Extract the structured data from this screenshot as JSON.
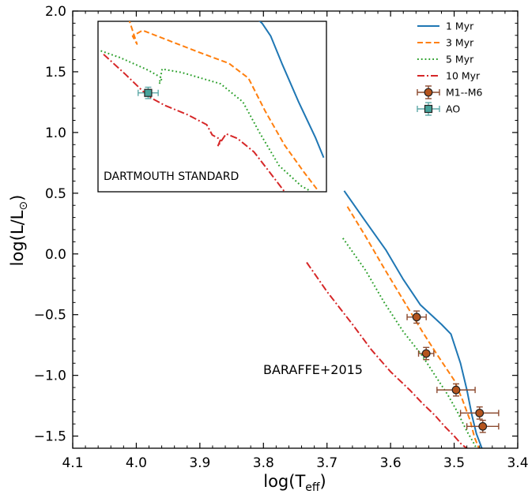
{
  "chart_data": {
    "type": "line",
    "xlabel": "log(T",
    "xlabel_sub": "eff",
    "xlabel_end": ")",
    "ylabel": "log(L/L",
    "ylabel_sub": "⊙",
    "ylabel_end": ")",
    "xlim": [
      4.1,
      3.4
    ],
    "ylim": [
      -1.6,
      2.0
    ],
    "x_ticks": [
      4.1,
      4.0,
      3.9,
      3.8,
      3.7,
      3.6,
      3.5,
      3.4
    ],
    "x_tick_labels": [
      "4.1",
      "4.0",
      "3.9",
      "3.8",
      "3.7",
      "3.6",
      "3.5",
      "3.4"
    ],
    "y_ticks": [
      -1.5,
      -1.0,
      -0.5,
      0.0,
      0.5,
      1.0,
      1.5,
      2.0
    ],
    "y_tick_labels": [
      "−1.5",
      "−1.0",
      "−0.5",
      "0.0",
      "0.5",
      "1.0",
      "1.5",
      "2.0"
    ],
    "annotations": [
      "BARAFFE+2015"
    ],
    "legend_position": "top-right",
    "series": [
      {
        "name": "1 Myr",
        "color": "#1f77b4",
        "dash": "solid",
        "x": [
          3.673,
          3.641,
          3.607,
          3.58,
          3.553,
          3.52,
          3.505,
          3.49,
          3.48,
          3.472,
          3.465,
          3.455
        ],
        "y": [
          0.52,
          0.28,
          0.03,
          -0.21,
          -0.42,
          -0.58,
          -0.66,
          -0.9,
          -1.12,
          -1.33,
          -1.48,
          -1.62
        ]
      },
      {
        "name": "3 Myr",
        "color": "#ff7f0e",
        "dash": "dashed",
        "x": [
          3.668,
          3.64,
          3.61,
          3.58,
          3.55,
          3.528,
          3.5,
          3.487,
          3.475,
          3.468,
          3.461
        ],
        "y": [
          0.39,
          0.15,
          -0.12,
          -0.38,
          -0.64,
          -0.82,
          -1.04,
          -1.2,
          -1.37,
          -1.51,
          -1.6
        ]
      },
      {
        "name": "5 Myr",
        "color": "#2ca02c",
        "dash": "dotted",
        "x": [
          3.675,
          3.64,
          3.61,
          3.58,
          3.55,
          3.53,
          3.51,
          3.495,
          3.48,
          3.47,
          3.465
        ],
        "y": [
          0.13,
          -0.13,
          -0.4,
          -0.64,
          -0.84,
          -1.0,
          -1.16,
          -1.3,
          -1.46,
          -1.55,
          -1.6
        ]
      },
      {
        "name": "10 Myr",
        "color": "#d62728",
        "dash": "dashdot",
        "x": [
          3.732,
          3.7,
          3.66,
          3.63,
          3.6,
          3.57,
          3.55,
          3.53,
          3.515,
          3.5,
          3.488,
          3.48
        ],
        "y": [
          -0.07,
          -0.31,
          -0.58,
          -0.79,
          -0.97,
          -1.12,
          -1.23,
          -1.33,
          -1.42,
          -1.5,
          -1.57,
          -1.6
        ]
      }
    ],
    "points": [
      {
        "name": "M1--M6",
        "color": "#b5541d",
        "edge": "#222222",
        "marker": "circle",
        "ecolor": "#8c4a2f",
        "data": [
          {
            "x": 3.559,
            "y": -0.52,
            "xerr": 0.015,
            "yerr": 0.05
          },
          {
            "x": 3.544,
            "y": -0.82,
            "xerr": 0.012,
            "yerr": 0.05
          },
          {
            "x": 3.497,
            "y": -1.12,
            "xerr": 0.03,
            "yerr": 0.05
          },
          {
            "x": 3.46,
            "y": -1.31,
            "xerr": 0.03,
            "yerr": 0.05
          },
          {
            "x": 3.455,
            "y": -1.42,
            "xerr": 0.025,
            "yerr": 0.05
          }
        ]
      }
    ],
    "legend_extra": [
      {
        "name": "AO",
        "color": "#47a39b",
        "edge": "#222222",
        "marker": "square",
        "ecolor": "#5fa9a8"
      }
    ],
    "inset": {
      "annotation": "DARTMOUTH STANDARD",
      "xlim": [
        4.08,
        3.67
      ],
      "ylim": [
        0.5,
        2.0
      ],
      "series": [
        {
          "name": "1 Myr",
          "color": "#1f77b4",
          "dash": "solid",
          "x": [
            3.8,
            3.785,
            3.77,
            3.75,
            3.72,
            3.69,
            3.675
          ],
          "y": [
            2.05,
            1.98,
            1.87,
            1.63,
            1.29,
            0.98,
            0.8
          ]
        },
        {
          "name": "3 Myr",
          "color": "#ff7f0e",
          "dash": "dashed",
          "x": [
            4.03,
            4.01,
            4.018,
            4.0,
            3.9,
            3.845,
            3.81,
            3.78,
            3.745,
            3.71,
            3.685
          ],
          "y": [
            2.1,
            1.8,
            1.87,
            1.92,
            1.73,
            1.63,
            1.5,
            1.21,
            0.91,
            0.67,
            0.51
          ]
        },
        {
          "name": "5 Myr",
          "color": "#2ca02c",
          "dash": "dotted",
          "x": [
            4.075,
            4.04,
            3.99,
            3.965,
            3.97,
            3.965,
            3.93,
            3.86,
            3.82,
            3.79,
            3.755,
            3.715,
            3.7
          ],
          "y": [
            1.74,
            1.68,
            1.57,
            1.5,
            1.45,
            1.58,
            1.55,
            1.45,
            1.29,
            1.02,
            0.73,
            0.55,
            0.51
          ]
        },
        {
          "name": "10 Myr",
          "color": "#d62728",
          "dash": "dashdot",
          "x": [
            4.07,
            4.03,
            3.99,
            3.96,
            3.92,
            3.885,
            3.875,
            3.86,
            3.865,
            3.85,
            3.83,
            3.8,
            3.77,
            3.745
          ],
          "y": [
            1.71,
            1.53,
            1.34,
            1.26,
            1.18,
            1.09,
            1.0,
            0.96,
            0.9,
            1.01,
            0.97,
            0.85,
            0.66,
            0.5
          ]
        }
      ],
      "points": [
        {
          "name": "AO",
          "x": 3.99,
          "y": 1.37,
          "xerr": 0.018,
          "yerr": 0.05
        }
      ]
    }
  }
}
